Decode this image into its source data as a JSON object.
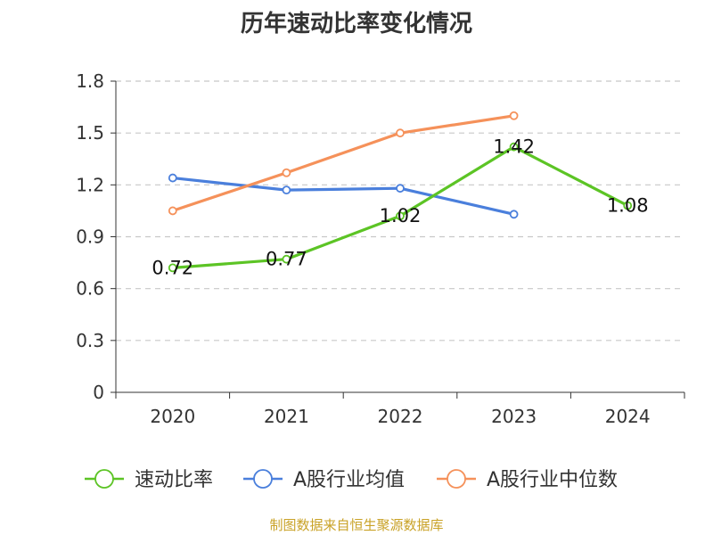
{
  "chart_data": {
    "type": "line",
    "title": "历年速动比率变化情况",
    "categories": [
      "2020",
      "2021",
      "2022",
      "2023",
      "2024"
    ],
    "y_ticks": [
      "0",
      "0.3",
      "0.6",
      "0.9",
      "1.2",
      "1.5",
      "1.8"
    ],
    "ylim": [
      0,
      1.8
    ],
    "grid": true,
    "legend_position": "bottom",
    "series": [
      {
        "name": "速动比率",
        "color": "#5cc425",
        "values": [
          0.72,
          0.77,
          1.02,
          1.42,
          1.08
        ],
        "labels": [
          "0.72",
          "0.77",
          "1.02",
          "1.42",
          "1.08"
        ]
      },
      {
        "name": "A股行业均值",
        "color": "#4a7fdc",
        "values": [
          1.24,
          1.17,
          1.18,
          1.03,
          null
        ]
      },
      {
        "name": "A股行业中位数",
        "color": "#f5915a",
        "values": [
          1.05,
          1.27,
          1.5,
          1.6,
          null
        ]
      }
    ]
  },
  "source": {
    "text": "制图数据来自恒生聚源数据库",
    "color": "#c9a227"
  }
}
